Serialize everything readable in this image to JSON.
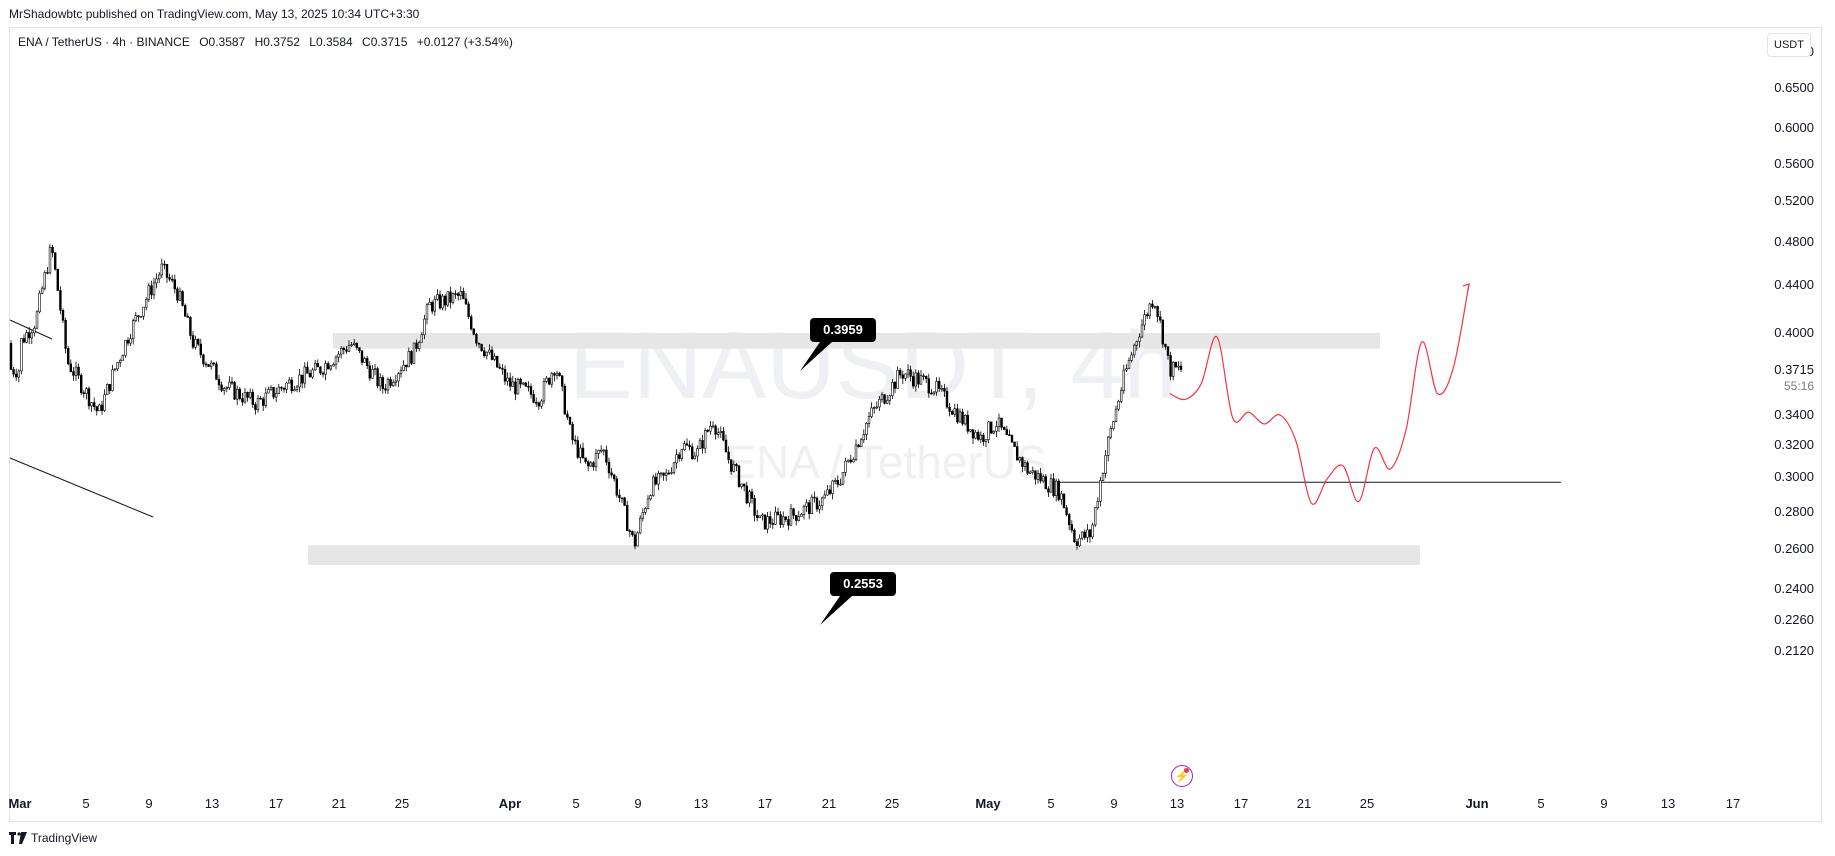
{
  "header": {
    "credit": "MrShadowbtc published on TradingView.com, May 13, 2025 10:34 UTC+3:30"
  },
  "legend": {
    "symbol": "ENA / TetherUS · 4h · BINANCE",
    "open": "O0.3587",
    "high": "H0.3752",
    "low": "L0.3584",
    "close": "C0.3715",
    "change": "+0.0127 (+3.54%)"
  },
  "currency_button": "USDT",
  "watermark": {
    "ticker": "ENAUSDT, 4h",
    "name": "ENA / TetherUS"
  },
  "branding": "TradingView",
  "colors": {
    "candles": "#000000",
    "projection": "#f23645",
    "zones": "#e6e6e6",
    "label_bg": "#000000",
    "label_text": "#ffffff"
  },
  "chart_data": {
    "type": "candlestick",
    "symbol": "ENAUSDT",
    "interval": "4h",
    "exchange": "BINANCE",
    "y_ticks": [
      "0.7000",
      "0.6500",
      "0.6000",
      "0.5600",
      "0.5200",
      "0.4800",
      "0.4400",
      "0.4000",
      "0.3400",
      "0.3200",
      "0.3000",
      "0.2800",
      "0.2600",
      "0.2400",
      "0.2260",
      "0.2120"
    ],
    "y_tick_values": [
      0.7,
      0.65,
      0.6,
      0.56,
      0.52,
      0.48,
      0.44,
      0.4,
      0.34,
      0.32,
      0.3,
      0.28,
      0.26,
      0.24,
      0.226,
      0.212
    ],
    "x_ticks": [
      "Mar",
      "5",
      "9",
      "13",
      "17",
      "21",
      "25",
      "Apr",
      "5",
      "9",
      "13",
      "17",
      "21",
      "25",
      "May",
      "5",
      "9",
      "13",
      "17",
      "21",
      "25",
      "Jun",
      "5",
      "9",
      "13",
      "17"
    ],
    "bold_x_ticks": [
      "Mar",
      "Apr",
      "May",
      "Jun"
    ],
    "last_price": "0.3715",
    "countdown": "55:16",
    "zones": [
      {
        "label": "0.3959",
        "value": 0.3959,
        "top": 0.4,
        "bottom": 0.388
      },
      {
        "label": "0.2553",
        "value": 0.2553,
        "top": 0.262,
        "bottom": 0.252
      }
    ],
    "horizontal_line": 0.297,
    "price_path": [
      [
        "2025-03-01",
        0.392
      ],
      [
        "2025-03-02",
        0.41
      ],
      [
        "2025-03-03",
        0.475
      ],
      [
        "2025-03-04",
        0.378
      ],
      [
        "2025-03-06",
        0.341
      ],
      [
        "2025-03-08",
        0.402
      ],
      [
        "2025-03-10",
        0.455
      ],
      [
        "2025-03-11",
        0.434
      ],
      [
        "2025-03-12",
        0.392
      ],
      [
        "2025-03-14",
        0.36
      ],
      [
        "2025-03-16",
        0.348
      ],
      [
        "2025-03-18",
        0.362
      ],
      [
        "2025-03-20",
        0.372
      ],
      [
        "2025-03-22",
        0.392
      ],
      [
        "2025-03-24",
        0.359
      ],
      [
        "2025-03-26",
        0.385
      ],
      [
        "2025-03-27",
        0.423
      ],
      [
        "2025-03-29",
        0.431
      ],
      [
        "2025-03-30",
        0.396
      ],
      [
        "2025-04-01",
        0.362
      ],
      [
        "2025-04-03",
        0.352
      ],
      [
        "2025-04-04",
        0.376
      ],
      [
        "2025-04-05",
        0.325
      ],
      [
        "2025-04-06",
        0.305
      ],
      [
        "2025-04-07",
        0.318
      ],
      [
        "2025-04-08",
        0.29
      ],
      [
        "2025-04-09",
        0.262
      ],
      [
        "2025-04-10",
        0.294
      ],
      [
        "2025-04-11",
        0.3
      ],
      [
        "2025-04-12",
        0.32
      ],
      [
        "2025-04-13",
        0.315
      ],
      [
        "2025-04-14",
        0.337
      ],
      [
        "2025-04-15",
        0.311
      ],
      [
        "2025-04-17",
        0.274
      ],
      [
        "2025-04-19",
        0.278
      ],
      [
        "2025-04-21",
        0.287
      ],
      [
        "2025-04-22",
        0.298
      ],
      [
        "2025-04-23",
        0.318
      ],
      [
        "2025-04-24",
        0.34
      ],
      [
        "2025-04-26",
        0.37
      ],
      [
        "2025-04-28",
        0.36
      ],
      [
        "2025-04-30",
        0.335
      ],
      [
        "2025-05-01",
        0.325
      ],
      [
        "2025-05-02",
        0.335
      ],
      [
        "2025-05-03",
        0.318
      ],
      [
        "2025-05-04",
        0.304
      ],
      [
        "2025-05-06",
        0.292
      ],
      [
        "2025-05-07",
        0.265
      ],
      [
        "2025-05-08",
        0.268
      ],
      [
        "2025-05-09",
        0.318
      ],
      [
        "2025-05-10",
        0.362
      ],
      [
        "2025-05-11",
        0.4
      ],
      [
        "2025-05-12",
        0.431
      ],
      [
        "2025-05-13",
        0.372
      ]
    ],
    "projection_path": [
      [
        "2025-05-13",
        0.355
      ],
      [
        "2025-05-14",
        0.351
      ],
      [
        "2025-05-15",
        0.362
      ],
      [
        "2025-05-16",
        0.397
      ],
      [
        "2025-05-17",
        0.338
      ],
      [
        "2025-05-18",
        0.342
      ],
      [
        "2025-05-19",
        0.334
      ],
      [
        "2025-05-20",
        0.34
      ],
      [
        "2025-05-21",
        0.323
      ],
      [
        "2025-05-22",
        0.285
      ],
      [
        "2025-05-23",
        0.299
      ],
      [
        "2025-05-24",
        0.307
      ],
      [
        "2025-05-25",
        0.286
      ],
      [
        "2025-05-26",
        0.318
      ],
      [
        "2025-05-27",
        0.305
      ],
      [
        "2025-05-28",
        0.33
      ],
      [
        "2025-05-29",
        0.393
      ],
      [
        "2025-05-30",
        0.355
      ],
      [
        "2025-05-31",
        0.373
      ],
      [
        "2025-06-01",
        0.441
      ]
    ],
    "trend_lines": [
      {
        "from": [
          "2025-03-01",
          0.425
        ],
        "to": [
          "2025-03-03",
          0.415
        ]
      },
      {
        "from": [
          "2025-03-01",
          0.365
        ],
        "to": [
          "2025-03-13",
          0.322
        ]
      }
    ]
  }
}
